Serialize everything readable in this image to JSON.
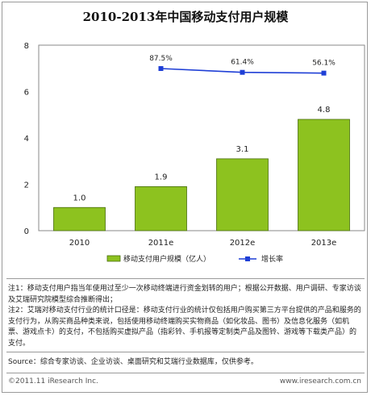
{
  "chart_data": {
    "type": "bar",
    "title": "2010-2013年中国移动支付用户规模",
    "categories": [
      "2010",
      "2011e",
      "2012e",
      "2013e"
    ],
    "ylim": [
      0,
      8
    ],
    "yticks": [
      "0",
      "2",
      "4",
      "6",
      "8"
    ],
    "series": [
      {
        "name": "移动支付用户规模（亿人）",
        "type": "bar",
        "color": "#8dc21f",
        "values": [
          1.0,
          1.9,
          3.1,
          4.8
        ],
        "labels": [
          "1.0",
          "1.9",
          "3.1",
          "4.8"
        ]
      },
      {
        "name": "增长率",
        "type": "line",
        "color": "#1f3fd6",
        "values": [
          null,
          87.5,
          61.4,
          56.1
        ],
        "labels": [
          "",
          "87.5%",
          "61.4%",
          "56.1%"
        ]
      }
    ],
    "legend_position": "bottom"
  },
  "notes": [
    "注1：移动支付用户指当年使用过至少一次移动终端进行资金划转的用户；根据公开数据、用户调研、专家访谈及艾瑞研究院模型综合推断得出；",
    "注2：艾瑞对移动支付行业的统计口径是：移动支付行业的统计仅包括用户购买第三方平台提供的产品和服务的支付行为，从购买商品种类来说，包括使用移动终端购买实物商品（如化妆品、图书）及信息化服务（如机票、游戏点卡）的支付，不包括购买虚拟产品（指彩铃、手机报等定制类产品及图铃、游戏等下载类产品）的支付。"
  ],
  "source": "Source：综合专家访谈、企业访谈、桌面研究和艾瑞行业数据库，仅供参考。",
  "footer": {
    "copyright": "©2011.11 iResearch Inc.",
    "website": "www.iresearch.com.cn"
  }
}
